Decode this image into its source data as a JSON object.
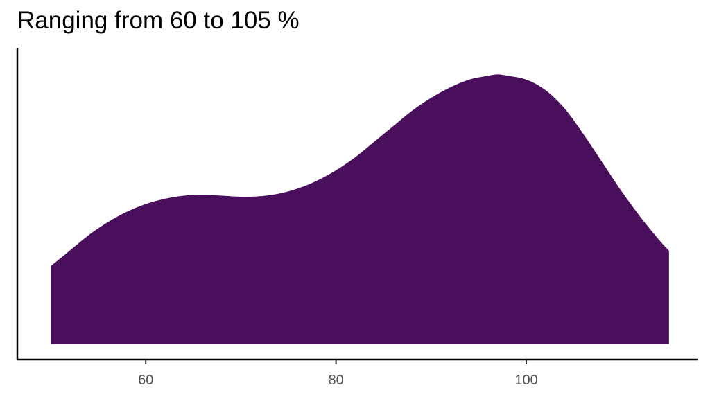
{
  "chart_data": {
    "type": "area",
    "title": "Ranging from 60 to 105 %",
    "xlabel": "",
    "ylabel": "",
    "xlim": [
      46.5,
      118
    ],
    "ylim": [
      -0.06,
      1.14
    ],
    "x_ticks": [
      "60",
      "80",
      "100"
    ],
    "x_tick_values": [
      60,
      80,
      100
    ],
    "fill_color": "#4a0f5c",
    "axis_color": "#000000",
    "grid": false,
    "legend": "none",
    "series": [
      {
        "x": [
          50,
          52,
          54,
          56,
          58,
          60,
          62,
          64,
          66,
          68,
          70,
          72,
          74,
          76,
          78,
          80,
          82,
          84,
          86,
          88,
          90,
          92,
          94,
          96,
          97,
          98,
          100,
          102,
          104,
          106,
          108,
          110,
          112,
          114,
          115
        ],
        "values": [
          0.3,
          0.36,
          0.42,
          0.47,
          0.51,
          0.54,
          0.56,
          0.572,
          0.575,
          0.572,
          0.568,
          0.57,
          0.58,
          0.6,
          0.63,
          0.67,
          0.72,
          0.78,
          0.84,
          0.9,
          0.95,
          0.99,
          1.02,
          1.035,
          1.04,
          1.035,
          1.02,
          0.98,
          0.91,
          0.81,
          0.7,
          0.59,
          0.49,
          0.4,
          0.36
        ]
      }
    ]
  }
}
